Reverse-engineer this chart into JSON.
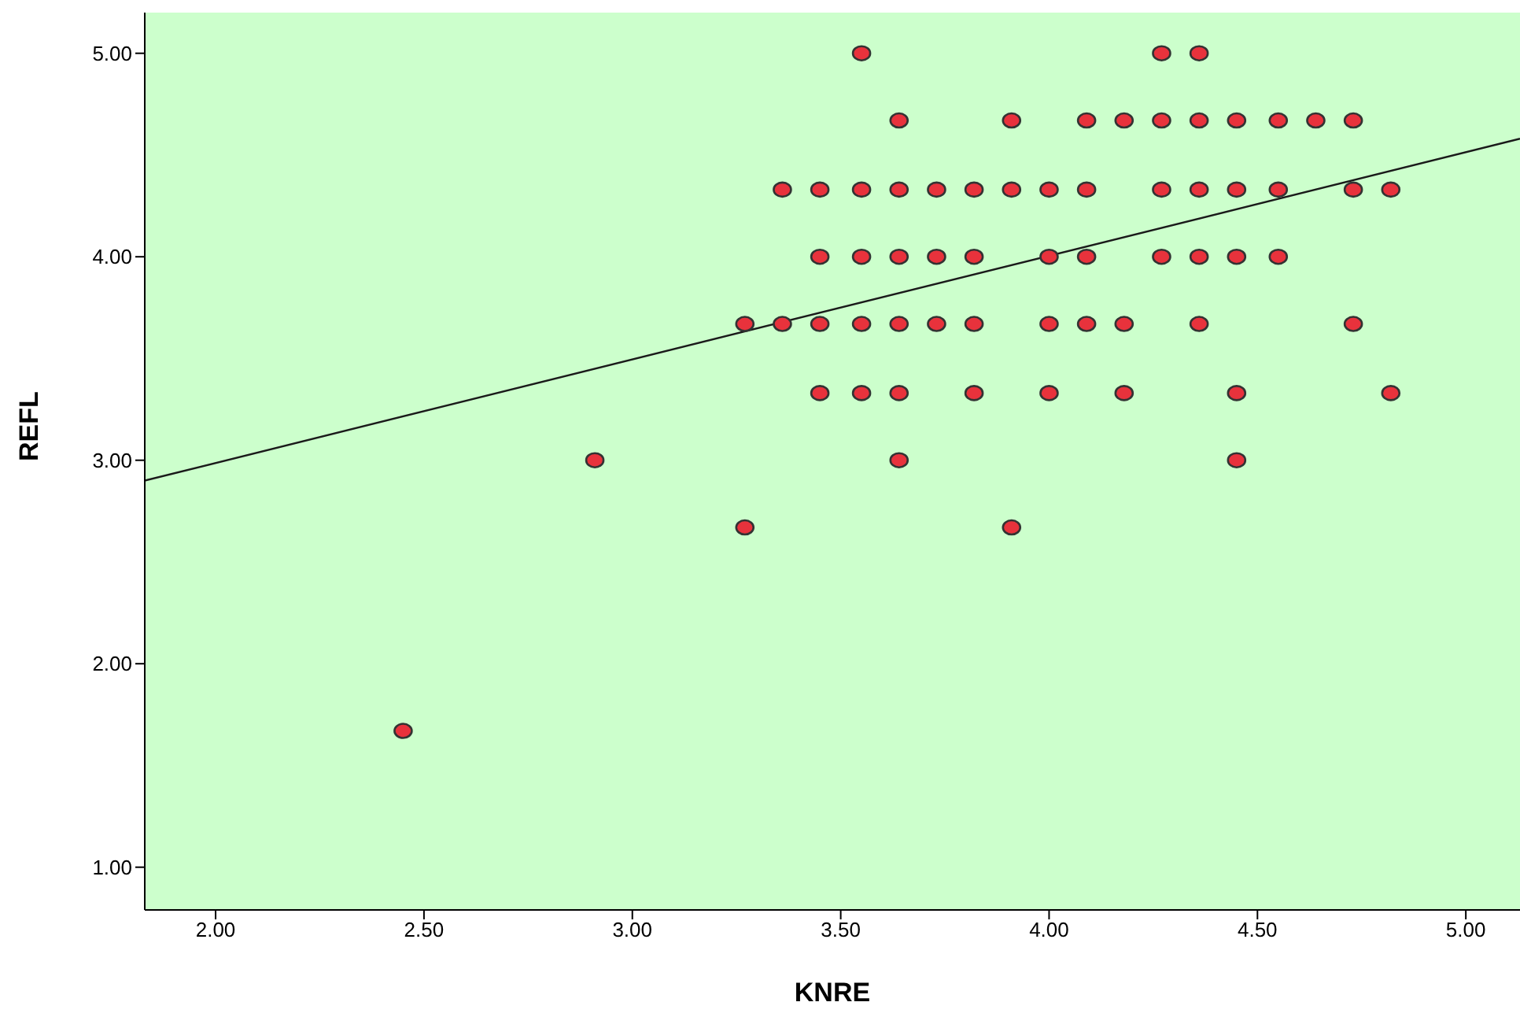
{
  "chart_data": {
    "type": "scatter",
    "xlabel": "KNRE",
    "ylabel": "REFL",
    "xlim": [
      1.83,
      5.13
    ],
    "ylim": [
      0.79,
      5.2
    ],
    "xticks": [
      {
        "value": 2,
        "label": "2.00"
      },
      {
        "value": 2.5,
        "label": "2.50"
      },
      {
        "value": 3,
        "label": "3.00"
      },
      {
        "value": 3.5,
        "label": "3.50"
      },
      {
        "value": 4,
        "label": "4.00"
      },
      {
        "value": 4.5,
        "label": "4.50"
      },
      {
        "value": 5,
        "label": "5.00"
      }
    ],
    "yticks": [
      {
        "value": 1,
        "label": "1.00"
      },
      {
        "value": 2,
        "label": "2.00"
      },
      {
        "value": 3,
        "label": "3.00"
      },
      {
        "value": 4,
        "label": "4.00"
      },
      {
        "value": 5,
        "label": "5.00"
      }
    ],
    "series": [
      {
        "marker": "circle",
        "color": "#e8323c",
        "x": [
          3.55,
          4.27,
          4.36,
          3.64,
          3.91,
          4.09,
          4.18,
          4.27,
          4.36,
          4.45,
          4.55,
          4.64,
          4.73,
          3.36,
          3.45,
          3.55,
          3.64,
          3.73,
          3.82,
          3.91,
          4.0,
          4.09,
          4.27,
          4.36,
          4.45,
          4.55,
          4.73,
          4.82,
          3.45,
          3.55,
          3.64,
          3.73,
          3.82,
          4.0,
          4.09,
          4.27,
          4.36,
          4.45,
          4.55,
          3.27,
          3.36,
          3.45,
          3.55,
          3.64,
          3.73,
          3.82,
          4.0,
          4.09,
          4.18,
          4.36,
          4.73,
          3.45,
          3.55,
          3.64,
          3.82,
          4.0,
          4.18,
          4.45,
          4.82,
          2.91,
          3.64,
          4.45,
          3.27,
          3.91,
          2.45
        ],
        "values": [
          5,
          5,
          5,
          4.67,
          4.67,
          4.67,
          4.67,
          4.67,
          4.67,
          4.67,
          4.67,
          4.67,
          4.67,
          4.33,
          4.33,
          4.33,
          4.33,
          4.33,
          4.33,
          4.33,
          4.33,
          4.33,
          4.33,
          4.33,
          4.33,
          4.33,
          4.33,
          4.33,
          4,
          4,
          4,
          4,
          4,
          4,
          4,
          4,
          4,
          4,
          4,
          3.67,
          3.67,
          3.67,
          3.67,
          3.67,
          3.67,
          3.67,
          3.67,
          3.67,
          3.67,
          3.67,
          3.67,
          3.33,
          3.33,
          3.33,
          3.33,
          3.33,
          3.33,
          3.33,
          3.33,
          3,
          3,
          3,
          2.67,
          2.67,
          1.67
        ]
      },
      {
        "type": "line",
        "color": "#1a1a1a",
        "x": [
          1.83,
          5.13
        ],
        "values": [
          2.9,
          4.58
        ]
      }
    ]
  }
}
